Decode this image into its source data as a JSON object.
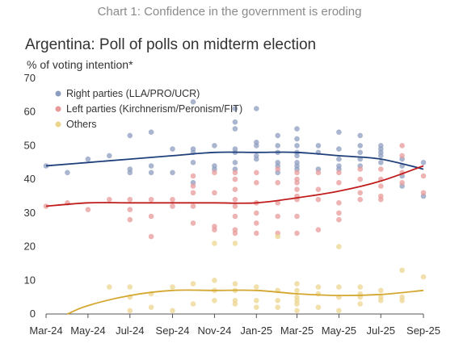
{
  "header": {
    "text": "Chart 1: Confidence in the government is eroding"
  },
  "chart_data": {
    "type": "scatter",
    "title": "Argentina: Poll of polls on midterm election",
    "ylabel": "% of voting intention*",
    "xlabel": "",
    "x_axis_type": "date",
    "xlim": [
      "2024-03-01",
      "2025-09-01"
    ],
    "ylim": [
      0,
      70
    ],
    "x_ticks": [
      {
        "date": "2024-03-01",
        "label": "Mar-24"
      },
      {
        "date": "2024-05-01",
        "label": "May-24"
      },
      {
        "date": "2024-07-01",
        "label": "Jul-24"
      },
      {
        "date": "2024-09-01",
        "label": "Sep-24"
      },
      {
        "date": "2024-11-01",
        "label": "Nov-24"
      },
      {
        "date": "2025-01-01",
        "label": "Jan-25"
      },
      {
        "date": "2025-03-01",
        "label": "Mar-25"
      },
      {
        "date": "2025-05-01",
        "label": "May-25"
      },
      {
        "date": "2025-07-01",
        "label": "Jul-25"
      },
      {
        "date": "2025-09-01",
        "label": "Sep-25"
      }
    ],
    "y_ticks": [
      0,
      10,
      20,
      30,
      40,
      50,
      60,
      70
    ],
    "grid": false,
    "legend_position": "top-left",
    "series": [
      {
        "name": "Right parties (LLA/PRO/UCR)",
        "color": "#8d9dbf",
        "trend_color": "#1f3f7a",
        "points": [
          [
            "2024-03-01",
            44
          ],
          [
            "2024-04-01",
            42
          ],
          [
            "2024-05-01",
            46
          ],
          [
            "2024-06-01",
            47
          ],
          [
            "2024-07-01",
            53
          ],
          [
            "2024-07-01",
            43
          ],
          [
            "2024-07-01",
            42
          ],
          [
            "2024-08-01",
            54
          ],
          [
            "2024-08-01",
            44
          ],
          [
            "2024-08-01",
            42
          ],
          [
            "2024-09-01",
            49
          ],
          [
            "2024-09-01",
            42
          ],
          [
            "2024-10-01",
            63
          ],
          [
            "2024-10-01",
            49
          ],
          [
            "2024-10-01",
            48
          ],
          [
            "2024-10-01",
            45
          ],
          [
            "2024-10-01",
            39
          ],
          [
            "2024-11-01",
            50
          ],
          [
            "2024-11-01",
            44
          ],
          [
            "2024-11-01",
            43
          ],
          [
            "2024-12-01",
            61
          ],
          [
            "2024-12-01",
            57
          ],
          [
            "2024-12-01",
            55
          ],
          [
            "2024-12-01",
            49
          ],
          [
            "2024-12-01",
            48
          ],
          [
            "2024-12-01",
            45
          ],
          [
            "2024-12-01",
            43
          ],
          [
            "2025-01-01",
            61
          ],
          [
            "2025-01-01",
            51
          ],
          [
            "2025-01-01",
            50
          ],
          [
            "2025-01-01",
            47
          ],
          [
            "2025-01-01",
            46
          ],
          [
            "2025-02-01",
            53
          ],
          [
            "2025-02-01",
            50
          ],
          [
            "2025-02-01",
            48
          ],
          [
            "2025-02-01",
            45
          ],
          [
            "2025-02-01",
            44
          ],
          [
            "2025-02-01",
            42
          ],
          [
            "2025-03-01",
            55
          ],
          [
            "2025-03-01",
            52
          ],
          [
            "2025-03-01",
            50
          ],
          [
            "2025-03-01",
            48
          ],
          [
            "2025-03-01",
            47
          ],
          [
            "2025-03-01",
            45
          ],
          [
            "2025-03-01",
            44
          ],
          [
            "2025-03-01",
            43
          ],
          [
            "2025-04-01",
            50
          ],
          [
            "2025-04-01",
            48
          ],
          [
            "2025-04-01",
            43
          ],
          [
            "2025-05-01",
            54
          ],
          [
            "2025-05-01",
            49
          ],
          [
            "2025-05-01",
            46
          ],
          [
            "2025-05-01",
            44
          ],
          [
            "2025-05-01",
            43
          ],
          [
            "2025-06-01",
            53
          ],
          [
            "2025-06-01",
            50
          ],
          [
            "2025-06-01",
            48
          ],
          [
            "2025-06-01",
            46
          ],
          [
            "2025-06-01",
            44
          ],
          [
            "2025-07-01",
            50
          ],
          [
            "2025-07-01",
            49
          ],
          [
            "2025-07-01",
            48
          ],
          [
            "2025-07-01",
            47
          ],
          [
            "2025-07-01",
            45
          ],
          [
            "2025-08-01",
            46
          ],
          [
            "2025-08-01",
            44
          ],
          [
            "2025-08-01",
            41
          ],
          [
            "2025-08-01",
            38
          ],
          [
            "2025-09-01",
            45
          ],
          [
            "2025-09-01",
            35
          ]
        ],
        "trend": [
          [
            "2024-03-01",
            44
          ],
          [
            "2024-05-01",
            45
          ],
          [
            "2024-07-01",
            46
          ],
          [
            "2024-09-01",
            47
          ],
          [
            "2024-11-01",
            48
          ],
          [
            "2025-01-01",
            48
          ],
          [
            "2025-03-01",
            48
          ],
          [
            "2025-05-01",
            47
          ],
          [
            "2025-07-01",
            46
          ],
          [
            "2025-09-01",
            43
          ]
        ]
      },
      {
        "name": "Left parties (Kirchnerism/Peronism/FIT)",
        "color": "#e89a9a",
        "trend_color": "#c01d1d",
        "points": [
          [
            "2024-03-01",
            32
          ],
          [
            "2024-04-01",
            33
          ],
          [
            "2024-05-01",
            31
          ],
          [
            "2024-06-01",
            34
          ],
          [
            "2024-07-01",
            34
          ],
          [
            "2024-07-01",
            31
          ],
          [
            "2024-07-01",
            28
          ],
          [
            "2024-08-01",
            34
          ],
          [
            "2024-08-01",
            29
          ],
          [
            "2024-08-01",
            23
          ],
          [
            "2024-09-01",
            34
          ],
          [
            "2024-09-01",
            32
          ],
          [
            "2024-10-01",
            41
          ],
          [
            "2024-10-01",
            38
          ],
          [
            "2024-10-01",
            36
          ],
          [
            "2024-10-01",
            32
          ],
          [
            "2024-10-01",
            27
          ],
          [
            "2024-11-01",
            42
          ],
          [
            "2024-11-01",
            36
          ],
          [
            "2024-11-01",
            26
          ],
          [
            "2024-11-01",
            25
          ],
          [
            "2024-12-01",
            42
          ],
          [
            "2024-12-01",
            40
          ],
          [
            "2024-12-01",
            37
          ],
          [
            "2024-12-01",
            34
          ],
          [
            "2024-12-01",
            32
          ],
          [
            "2024-12-01",
            29
          ],
          [
            "2024-12-01",
            25
          ],
          [
            "2024-12-01",
            24
          ],
          [
            "2025-01-01",
            42
          ],
          [
            "2025-01-01",
            39
          ],
          [
            "2025-01-01",
            33
          ],
          [
            "2025-01-01",
            30
          ],
          [
            "2025-01-01",
            27
          ],
          [
            "2025-01-01",
            24
          ],
          [
            "2025-02-01",
            43
          ],
          [
            "2025-02-01",
            39
          ],
          [
            "2025-02-01",
            33
          ],
          [
            "2025-02-01",
            29
          ],
          [
            "2025-02-01",
            24
          ],
          [
            "2025-03-01",
            42
          ],
          [
            "2025-03-01",
            40
          ],
          [
            "2025-03-01",
            39
          ],
          [
            "2025-03-01",
            37
          ],
          [
            "2025-03-01",
            35
          ],
          [
            "2025-03-01",
            34
          ],
          [
            "2025-03-01",
            29
          ],
          [
            "2025-03-01",
            24
          ],
          [
            "2025-04-01",
            42
          ],
          [
            "2025-04-01",
            37
          ],
          [
            "2025-04-01",
            34
          ],
          [
            "2025-04-01",
            25
          ],
          [
            "2025-05-01",
            42
          ],
          [
            "2025-05-01",
            39
          ],
          [
            "2025-05-01",
            33
          ],
          [
            "2025-05-01",
            30
          ],
          [
            "2025-05-01",
            28
          ],
          [
            "2025-06-01",
            43
          ],
          [
            "2025-06-01",
            40
          ],
          [
            "2025-06-01",
            36
          ],
          [
            "2025-06-01",
            34
          ],
          [
            "2025-07-01",
            43
          ],
          [
            "2025-07-01",
            40
          ],
          [
            "2025-07-01",
            38
          ],
          [
            "2025-07-01",
            35
          ],
          [
            "2025-07-01",
            34
          ],
          [
            "2025-08-01",
            50
          ],
          [
            "2025-08-01",
            47
          ],
          [
            "2025-08-01",
            42
          ],
          [
            "2025-08-01",
            39
          ],
          [
            "2025-09-01",
            41
          ],
          [
            "2025-09-01",
            36
          ]
        ],
        "trend": [
          [
            "2024-03-01",
            32
          ],
          [
            "2024-05-01",
            33
          ],
          [
            "2024-07-01",
            33
          ],
          [
            "2024-09-01",
            33
          ],
          [
            "2024-11-01",
            33
          ],
          [
            "2025-01-01",
            33
          ],
          [
            "2025-03-01",
            34.5
          ],
          [
            "2025-05-01",
            36.5
          ],
          [
            "2025-07-01",
            39.5
          ],
          [
            "2025-09-01",
            44
          ]
        ]
      },
      {
        "name": "Others",
        "color": "#ecd58f",
        "trend_color": "#d4a730",
        "points": [
          [
            "2024-06-01",
            8
          ],
          [
            "2024-07-01",
            8
          ],
          [
            "2024-07-01",
            5
          ],
          [
            "2024-07-01",
            1
          ],
          [
            "2024-08-01",
            6
          ],
          [
            "2024-08-01",
            2
          ],
          [
            "2024-09-01",
            8
          ],
          [
            "2024-09-01",
            1
          ],
          [
            "2024-10-01",
            9
          ],
          [
            "2024-10-01",
            3
          ],
          [
            "2024-11-01",
            21
          ],
          [
            "2024-11-01",
            10
          ],
          [
            "2024-11-01",
            7
          ],
          [
            "2024-11-01",
            4
          ],
          [
            "2024-12-01",
            21
          ],
          [
            "2024-12-01",
            9
          ],
          [
            "2024-12-01",
            7
          ],
          [
            "2024-12-01",
            4
          ],
          [
            "2024-12-01",
            3
          ],
          [
            "2025-01-01",
            8
          ],
          [
            "2025-01-01",
            4
          ],
          [
            "2025-01-01",
            2
          ],
          [
            "2025-02-01",
            23
          ],
          [
            "2025-02-01",
            7
          ],
          [
            "2025-02-01",
            4
          ],
          [
            "2025-02-01",
            2
          ],
          [
            "2025-03-01",
            9
          ],
          [
            "2025-03-01",
            7
          ],
          [
            "2025-03-01",
            5
          ],
          [
            "2025-03-01",
            4
          ],
          [
            "2025-03-01",
            3
          ],
          [
            "2025-03-01",
            1
          ],
          [
            "2025-04-01",
            8
          ],
          [
            "2025-04-01",
            6
          ],
          [
            "2025-04-01",
            2
          ],
          [
            "2025-05-01",
            20
          ],
          [
            "2025-05-01",
            8
          ],
          [
            "2025-05-01",
            5
          ],
          [
            "2025-05-01",
            1
          ],
          [
            "2025-06-01",
            8
          ],
          [
            "2025-06-01",
            6
          ],
          [
            "2025-06-01",
            5
          ],
          [
            "2025-06-01",
            3
          ],
          [
            "2025-07-01",
            7
          ],
          [
            "2025-07-01",
            5
          ],
          [
            "2025-07-01",
            4
          ],
          [
            "2025-08-01",
            13
          ],
          [
            "2025-08-01",
            5
          ],
          [
            "2025-08-01",
            4
          ],
          [
            "2025-09-01",
            11
          ]
        ],
        "trend": [
          [
            "2024-04-01",
            0
          ],
          [
            "2024-05-01",
            2.5
          ],
          [
            "2024-07-01",
            5.5
          ],
          [
            "2024-09-01",
            7
          ],
          [
            "2024-11-01",
            7
          ],
          [
            "2025-01-01",
            7
          ],
          [
            "2025-03-01",
            6
          ],
          [
            "2025-05-01",
            5.5
          ],
          [
            "2025-07-01",
            5.8
          ],
          [
            "2025-09-01",
            7
          ]
        ]
      }
    ]
  }
}
